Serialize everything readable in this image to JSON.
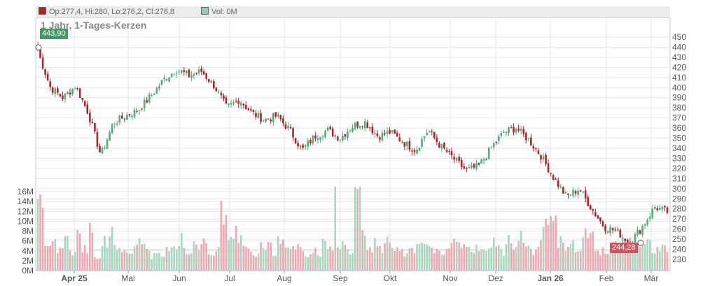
{
  "legend": {
    "ohlc_text": "Op:277,4, Hi:280, Lo:276,2, Cl:276,8",
    "vol_text": "Vol: 0M",
    "ohlc_color": "#b22222",
    "vol_color": "#9ec9b3"
  },
  "title": "1 Jahr, 1-Tages-Kerzen",
  "labels": {
    "high": "443,90",
    "low": "244,28"
  },
  "colors": {
    "up": "#4caf7a",
    "down": "#b0232a",
    "vol_up": "#a9d6bf",
    "vol_down": "#efa8b2",
    "high_badge": "#3f9a66",
    "low_badge": "#d9505a",
    "grid": "#e6e6e6"
  },
  "chart_data": [
    {
      "type": "candlestick",
      "title": "1 Jahr, 1-Tages-Kerzen",
      "y_ticks": [
        230,
        240,
        250,
        260,
        270,
        280,
        290,
        300,
        310,
        320,
        330,
        340,
        350,
        360,
        370,
        380,
        390,
        400,
        410,
        420,
        430,
        440,
        450
      ],
      "ylim": [
        222,
        458
      ],
      "x_ticks": [
        "Apr 25",
        "Mai",
        "Jun",
        "Jul",
        "Aug",
        "Sep",
        "Okt",
        "Nov",
        "Dez",
        "Jan 26",
        "Feb",
        "Mär"
      ],
      "grid": true,
      "price_anchors": [
        [
          "Mär 2025 start",
          436
        ],
        [
          "Mär 2025 mid",
          400
        ],
        [
          "Mär 2025 late",
          390
        ],
        [
          "Apr 25",
          402
        ],
        [
          "Apr 25 early",
          375
        ],
        [
          "Apr 25 low",
          333
        ],
        [
          "Apr 25 late",
          365
        ],
        [
          "Mai early",
          372
        ],
        [
          "Mai",
          378
        ],
        [
          "Mai mid",
          392
        ],
        [
          "Mai late",
          408
        ],
        [
          "Jun early",
          418
        ],
        [
          "Jun",
          412
        ],
        [
          "Jun mid",
          416
        ],
        [
          "Jun late",
          402
        ],
        [
          "Jul early",
          380
        ],
        [
          "Jul",
          388
        ],
        [
          "Jul mid",
          375
        ],
        [
          "Jul late",
          368
        ],
        [
          "Aug early",
          372
        ],
        [
          "Aug",
          358
        ],
        [
          "Aug mid",
          338
        ],
        [
          "Aug late",
          352
        ],
        [
          "Sep early",
          358
        ],
        [
          "Sep",
          350
        ],
        [
          "Sep mid",
          362
        ],
        [
          "Sep late",
          366
        ],
        [
          "Okt early",
          352
        ],
        [
          "Okt",
          356
        ],
        [
          "Okt mid",
          346
        ],
        [
          "Okt late",
          338
        ],
        [
          "Nov early",
          358
        ],
        [
          "Nov",
          342
        ],
        [
          "Nov mid",
          330
        ],
        [
          "Nov late",
          318
        ],
        [
          "Dez early",
          322
        ],
        [
          "Dez",
          340
        ],
        [
          "Dez mid",
          356
        ],
        [
          "Dez late",
          360
        ],
        [
          "Jan 26 early",
          348
        ],
        [
          "Jan 26",
          332
        ],
        [
          "Jan 26 mid",
          310
        ],
        [
          "Jan 26 late",
          292
        ],
        [
          "Feb early",
          300
        ],
        [
          "Feb",
          280
        ],
        [
          "Feb mid",
          262
        ],
        [
          "Feb late",
          258
        ],
        [
          "Mär early",
          246
        ],
        [
          "Mär",
          262
        ],
        [
          "Mär mid",
          282
        ],
        [
          "Mär late",
          277
        ]
      ],
      "last_candle": {
        "open": 277.4,
        "high": 280,
        "low": 276.2,
        "close": 276.8
      },
      "high": 443.9,
      "low": 244.28
    },
    {
      "type": "bar",
      "title": "Volume",
      "y_ticks": [
        "0M",
        "2M",
        "4M",
        "6M",
        "8M",
        "10M",
        "12M",
        "14M",
        "16M"
      ],
      "ylim": [
        0,
        17
      ],
      "volume_anchors_millions": [
        14.5,
        5,
        6,
        4,
        8,
        4,
        8,
        5,
        9,
        3,
        6,
        8,
        5,
        4,
        4,
        5,
        6,
        4,
        3,
        4,
        4,
        5,
        7,
        4,
        5,
        5,
        6,
        4,
        5,
        12,
        6,
        8,
        6,
        4,
        4,
        6,
        5,
        4,
        6,
        4,
        5,
        5,
        3,
        4,
        4,
        6,
        5,
        4,
        5,
        4,
        17,
        7,
        5,
        6,
        5,
        6,
        4,
        5,
        4,
        5,
        5,
        5,
        5,
        4,
        4,
        6,
        7,
        6,
        5,
        5,
        5,
        4,
        6,
        4,
        7,
        6,
        8,
        5,
        4,
        6,
        9,
        10,
        6,
        5,
        6,
        5,
        8,
        7,
        5,
        4,
        4,
        5,
        6,
        7,
        5,
        6,
        7,
        4,
        5,
        5
      ],
      "volume_note": "daily volume bars under price chart"
    }
  ]
}
